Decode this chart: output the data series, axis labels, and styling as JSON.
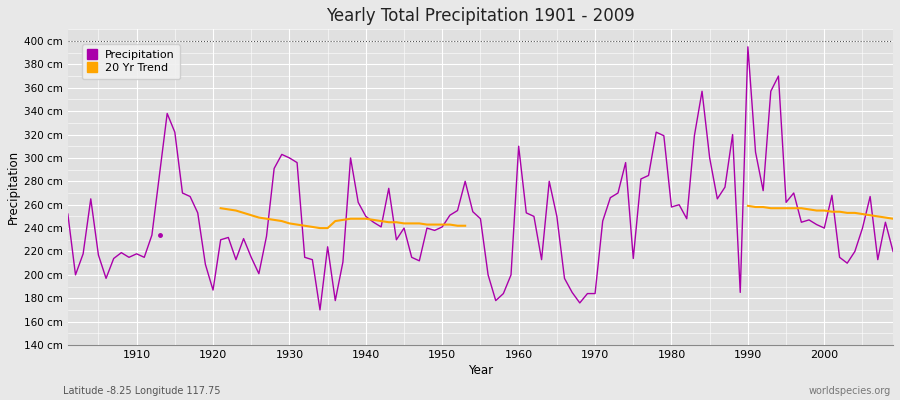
{
  "title": "Yearly Total Precipitation 1901 - 2009",
  "xlabel": "Year",
  "ylabel": "Precipitation",
  "subtitle_lat_lon": "Latitude -8.25 Longitude 117.75",
  "credit": "worldspecies.org",
  "ylim": [
    140,
    410
  ],
  "yticks": [
    140,
    160,
    180,
    200,
    220,
    240,
    260,
    280,
    300,
    320,
    340,
    360,
    380,
    400
  ],
  "precip_color": "#AA00AA",
  "trend_color": "#FFA500",
  "bg_color": "#E8E8E8",
  "plot_bg_color": "#E0E0E0",
  "grid_color": "#FFFFFF",
  "years": [
    1901,
    1902,
    1903,
    1904,
    1905,
    1906,
    1907,
    1908,
    1909,
    1910,
    1911,
    1912,
    1914,
    1915,
    1916,
    1917,
    1918,
    1919,
    1920,
    1921,
    1922,
    1923,
    1924,
    1925,
    1926,
    1927,
    1928,
    1929,
    1930,
    1931,
    1932,
    1933,
    1934,
    1935,
    1936,
    1937,
    1938,
    1939,
    1940,
    1941,
    1942,
    1943,
    1944,
    1945,
    1946,
    1947,
    1948,
    1949,
    1950,
    1951,
    1952,
    1953,
    1954,
    1955,
    1956,
    1957,
    1958,
    1959,
    1960,
    1961,
    1962,
    1963,
    1964,
    1965,
    1966,
    1967,
    1968,
    1969,
    1970,
    1971,
    1972,
    1973,
    1974,
    1975,
    1976,
    1977,
    1978,
    1979,
    1980,
    1981,
    1982,
    1983,
    1984,
    1985,
    1986,
    1987,
    1988,
    1989,
    1990,
    1991,
    1992,
    1993,
    1994,
    1995,
    1996,
    1997,
    1998,
    1999,
    2000,
    2001,
    2002,
    2003,
    2004,
    2005,
    2006,
    2007,
    2008,
    2009
  ],
  "precipitation": [
    252,
    200,
    218,
    265,
    217,
    197,
    214,
    219,
    215,
    218,
    215,
    234,
    338,
    322,
    270,
    267,
    253,
    209,
    187,
    230,
    232,
    213,
    231,
    215,
    201,
    233,
    291,
    303,
    300,
    296,
    215,
    213,
    170,
    224,
    178,
    211,
    300,
    262,
    250,
    245,
    241,
    274,
    230,
    240,
    215,
    212,
    240,
    238,
    241,
    251,
    255,
    280,
    254,
    248,
    200,
    178,
    184,
    200,
    310,
    253,
    250,
    213,
    280,
    250,
    197,
    185,
    176,
    184,
    184,
    246,
    266,
    270,
    296,
    214,
    282,
    285,
    322,
    319,
    258,
    260,
    248,
    319,
    357,
    300,
    265,
    275,
    320,
    185,
    395,
    305,
    272,
    357,
    370,
    262,
    270,
    245,
    247,
    243,
    240,
    268,
    215,
    210,
    220,
    240,
    267,
    213,
    245,
    220
  ],
  "isolated_point_year": 1913,
  "isolated_point_value": 234,
  "trend_seg1_years": [
    1921,
    1922,
    1923,
    1924,
    1925,
    1926,
    1927,
    1928,
    1929,
    1930,
    1931,
    1932,
    1933,
    1934,
    1935,
    1936,
    1937,
    1938,
    1939,
    1940,
    1941,
    1942,
    1943,
    1944,
    1945,
    1946,
    1947,
    1948,
    1949,
    1950,
    1951,
    1952,
    1953
  ],
  "trend_seg1_vals": [
    257,
    256,
    255,
    253,
    251,
    249,
    248,
    247,
    246,
    244,
    243,
    242,
    241,
    240,
    240,
    246,
    247,
    248,
    248,
    248,
    247,
    246,
    245,
    245,
    244,
    244,
    244,
    243,
    243,
    243,
    243,
    242,
    242
  ],
  "trend_seg2_years": [
    1990,
    1991,
    1992,
    1993,
    1994,
    1995,
    1996,
    1997,
    1998,
    1999,
    2000,
    2001,
    2002,
    2003,
    2004,
    2005,
    2006,
    2007,
    2008,
    2009
  ],
  "trend_seg2_vals": [
    259,
    258,
    258,
    257,
    257,
    257,
    257,
    257,
    256,
    255,
    255,
    254,
    254,
    253,
    253,
    252,
    251,
    250,
    249,
    248
  ],
  "xticks": [
    1910,
    1920,
    1930,
    1940,
    1950,
    1960,
    1970,
    1980,
    1990,
    2000
  ],
  "xlim": [
    1901,
    2009
  ]
}
